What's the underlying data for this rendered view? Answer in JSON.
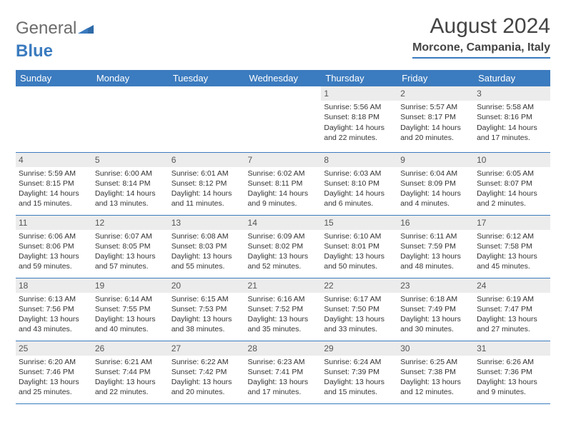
{
  "brand": {
    "part1": "General",
    "part2": "Blue"
  },
  "title": "August 2024",
  "location": "Morcone, Campania, Italy",
  "colors": {
    "header_bg": "#3b7bbf",
    "header_text": "#ffffff",
    "daynum_bg": "#ececec",
    "border": "#3b7bbf",
    "text": "#333333",
    "logo_gray": "#6b6b6b",
    "logo_blue": "#3b7bbf"
  },
  "typography": {
    "title_fontsize": 30,
    "location_fontsize": 16,
    "header_fontsize": 13,
    "cell_fontsize": 10.5,
    "daynum_fontsize": 12
  },
  "day_headers": [
    "Sunday",
    "Monday",
    "Tuesday",
    "Wednesday",
    "Thursday",
    "Friday",
    "Saturday"
  ],
  "weeks": [
    [
      {
        "n": "",
        "sr": "",
        "ss": "",
        "dl": ""
      },
      {
        "n": "",
        "sr": "",
        "ss": "",
        "dl": ""
      },
      {
        "n": "",
        "sr": "",
        "ss": "",
        "dl": ""
      },
      {
        "n": "",
        "sr": "",
        "ss": "",
        "dl": ""
      },
      {
        "n": "1",
        "sr": "Sunrise: 5:56 AM",
        "ss": "Sunset: 8:18 PM",
        "dl": "Daylight: 14 hours and 22 minutes."
      },
      {
        "n": "2",
        "sr": "Sunrise: 5:57 AM",
        "ss": "Sunset: 8:17 PM",
        "dl": "Daylight: 14 hours and 20 minutes."
      },
      {
        "n": "3",
        "sr": "Sunrise: 5:58 AM",
        "ss": "Sunset: 8:16 PM",
        "dl": "Daylight: 14 hours and 17 minutes."
      }
    ],
    [
      {
        "n": "4",
        "sr": "Sunrise: 5:59 AM",
        "ss": "Sunset: 8:15 PM",
        "dl": "Daylight: 14 hours and 15 minutes."
      },
      {
        "n": "5",
        "sr": "Sunrise: 6:00 AM",
        "ss": "Sunset: 8:14 PM",
        "dl": "Daylight: 14 hours and 13 minutes."
      },
      {
        "n": "6",
        "sr": "Sunrise: 6:01 AM",
        "ss": "Sunset: 8:12 PM",
        "dl": "Daylight: 14 hours and 11 minutes."
      },
      {
        "n": "7",
        "sr": "Sunrise: 6:02 AM",
        "ss": "Sunset: 8:11 PM",
        "dl": "Daylight: 14 hours and 9 minutes."
      },
      {
        "n": "8",
        "sr": "Sunrise: 6:03 AM",
        "ss": "Sunset: 8:10 PM",
        "dl": "Daylight: 14 hours and 6 minutes."
      },
      {
        "n": "9",
        "sr": "Sunrise: 6:04 AM",
        "ss": "Sunset: 8:09 PM",
        "dl": "Daylight: 14 hours and 4 minutes."
      },
      {
        "n": "10",
        "sr": "Sunrise: 6:05 AM",
        "ss": "Sunset: 8:07 PM",
        "dl": "Daylight: 14 hours and 2 minutes."
      }
    ],
    [
      {
        "n": "11",
        "sr": "Sunrise: 6:06 AM",
        "ss": "Sunset: 8:06 PM",
        "dl": "Daylight: 13 hours and 59 minutes."
      },
      {
        "n": "12",
        "sr": "Sunrise: 6:07 AM",
        "ss": "Sunset: 8:05 PM",
        "dl": "Daylight: 13 hours and 57 minutes."
      },
      {
        "n": "13",
        "sr": "Sunrise: 6:08 AM",
        "ss": "Sunset: 8:03 PM",
        "dl": "Daylight: 13 hours and 55 minutes."
      },
      {
        "n": "14",
        "sr": "Sunrise: 6:09 AM",
        "ss": "Sunset: 8:02 PM",
        "dl": "Daylight: 13 hours and 52 minutes."
      },
      {
        "n": "15",
        "sr": "Sunrise: 6:10 AM",
        "ss": "Sunset: 8:01 PM",
        "dl": "Daylight: 13 hours and 50 minutes."
      },
      {
        "n": "16",
        "sr": "Sunrise: 6:11 AM",
        "ss": "Sunset: 7:59 PM",
        "dl": "Daylight: 13 hours and 48 minutes."
      },
      {
        "n": "17",
        "sr": "Sunrise: 6:12 AM",
        "ss": "Sunset: 7:58 PM",
        "dl": "Daylight: 13 hours and 45 minutes."
      }
    ],
    [
      {
        "n": "18",
        "sr": "Sunrise: 6:13 AM",
        "ss": "Sunset: 7:56 PM",
        "dl": "Daylight: 13 hours and 43 minutes."
      },
      {
        "n": "19",
        "sr": "Sunrise: 6:14 AM",
        "ss": "Sunset: 7:55 PM",
        "dl": "Daylight: 13 hours and 40 minutes."
      },
      {
        "n": "20",
        "sr": "Sunrise: 6:15 AM",
        "ss": "Sunset: 7:53 PM",
        "dl": "Daylight: 13 hours and 38 minutes."
      },
      {
        "n": "21",
        "sr": "Sunrise: 6:16 AM",
        "ss": "Sunset: 7:52 PM",
        "dl": "Daylight: 13 hours and 35 minutes."
      },
      {
        "n": "22",
        "sr": "Sunrise: 6:17 AM",
        "ss": "Sunset: 7:50 PM",
        "dl": "Daylight: 13 hours and 33 minutes."
      },
      {
        "n": "23",
        "sr": "Sunrise: 6:18 AM",
        "ss": "Sunset: 7:49 PM",
        "dl": "Daylight: 13 hours and 30 minutes."
      },
      {
        "n": "24",
        "sr": "Sunrise: 6:19 AM",
        "ss": "Sunset: 7:47 PM",
        "dl": "Daylight: 13 hours and 27 minutes."
      }
    ],
    [
      {
        "n": "25",
        "sr": "Sunrise: 6:20 AM",
        "ss": "Sunset: 7:46 PM",
        "dl": "Daylight: 13 hours and 25 minutes."
      },
      {
        "n": "26",
        "sr": "Sunrise: 6:21 AM",
        "ss": "Sunset: 7:44 PM",
        "dl": "Daylight: 13 hours and 22 minutes."
      },
      {
        "n": "27",
        "sr": "Sunrise: 6:22 AM",
        "ss": "Sunset: 7:42 PM",
        "dl": "Daylight: 13 hours and 20 minutes."
      },
      {
        "n": "28",
        "sr": "Sunrise: 6:23 AM",
        "ss": "Sunset: 7:41 PM",
        "dl": "Daylight: 13 hours and 17 minutes."
      },
      {
        "n": "29",
        "sr": "Sunrise: 6:24 AM",
        "ss": "Sunset: 7:39 PM",
        "dl": "Daylight: 13 hours and 15 minutes."
      },
      {
        "n": "30",
        "sr": "Sunrise: 6:25 AM",
        "ss": "Sunset: 7:38 PM",
        "dl": "Daylight: 13 hours and 12 minutes."
      },
      {
        "n": "31",
        "sr": "Sunrise: 6:26 AM",
        "ss": "Sunset: 7:36 PM",
        "dl": "Daylight: 13 hours and 9 minutes."
      }
    ]
  ]
}
